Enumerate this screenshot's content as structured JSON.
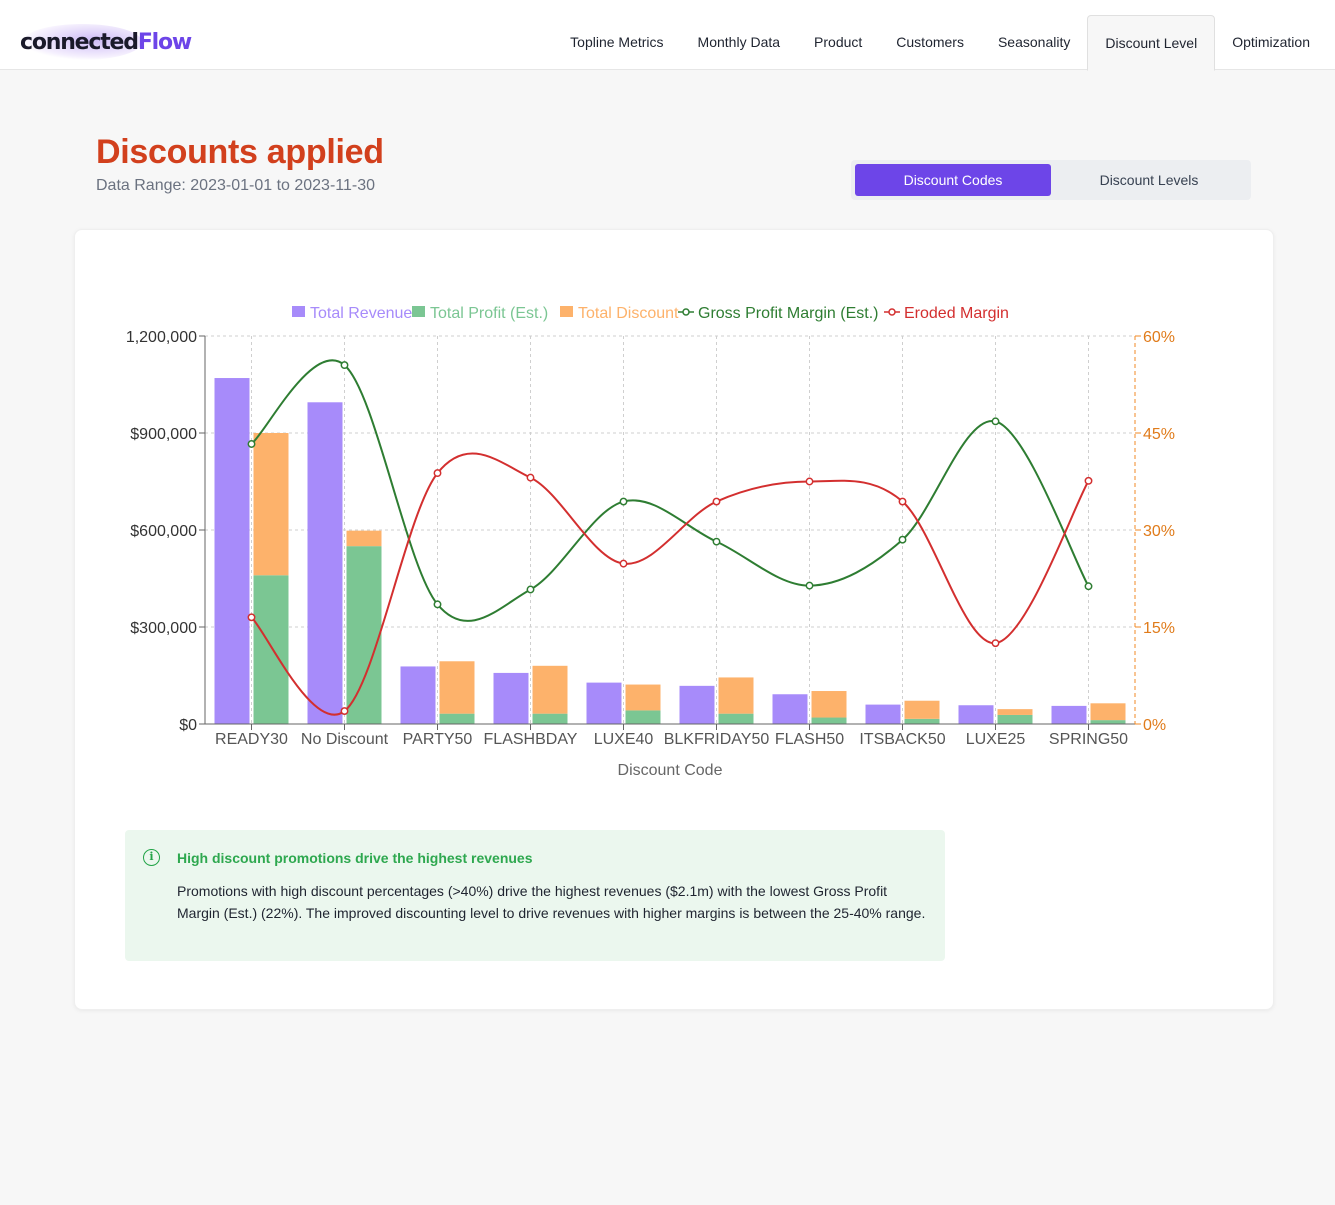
{
  "header": {
    "logo": {
      "part1": "connected",
      "part2": "Flow"
    },
    "nav": [
      {
        "label": "Topline Metrics",
        "active": false
      },
      {
        "label": "Monthly Data",
        "active": false
      },
      {
        "label": "Product",
        "active": false
      },
      {
        "label": "Customers",
        "active": false
      },
      {
        "label": "Seasonality",
        "active": false
      },
      {
        "label": "Discount Level",
        "active": true
      },
      {
        "label": "Optimization",
        "active": false
      }
    ]
  },
  "page": {
    "title": "Discounts applied",
    "date_range": "Data Range: 2023-01-01 to 2023-11-30"
  },
  "toggle": {
    "options": [
      {
        "label": "Discount Codes",
        "active": true
      },
      {
        "label": "Discount Levels",
        "active": false
      }
    ]
  },
  "chart_data": {
    "type": "bar",
    "xlabel": "Discount Code",
    "categories": [
      "READY30",
      "No Discount",
      "PARTY50",
      "FLASHBDAY",
      "LUXE40",
      "BLKFRIDAY50",
      "FLASH50",
      "ITSBACK50",
      "LUXE25",
      "SPRING50"
    ],
    "left_axis": {
      "ticks": [
        "$0",
        "$300,000",
        "$600,000",
        "$900,000",
        "1,200,000"
      ],
      "range": [
        0,
        1200000
      ]
    },
    "right_axis": {
      "ticks": [
        "0%",
        "15%",
        "30%",
        "45%",
        "60%"
      ],
      "range": [
        0,
        60
      ]
    },
    "series": [
      {
        "name": "Total Revenue",
        "kind": "bar",
        "axis": "left",
        "color": "#a78bfa",
        "values": [
          1070000,
          995000,
          178000,
          158000,
          128000,
          118000,
          92000,
          60000,
          58000,
          56000
        ]
      },
      {
        "name": "Total Profit (Est.)",
        "kind": "bar-stack-base",
        "axis": "left",
        "color": "#7bc693",
        "values": [
          460000,
          550000,
          32000,
          32000,
          42000,
          32000,
          20000,
          16000,
          28000,
          12000
        ]
      },
      {
        "name": "Total Discount",
        "kind": "bar-stack-top",
        "axis": "left",
        "color": "#fdb26b",
        "values": [
          440000,
          48000,
          162000,
          148000,
          80000,
          112000,
          82000,
          56000,
          18000,
          52000
        ]
      },
      {
        "name": "Gross Profit Margin (Est.)",
        "kind": "line",
        "axis": "right",
        "color": "#2e7d32",
        "values": [
          43.3,
          55.5,
          18.5,
          20.8,
          34.4,
          28.2,
          21.4,
          28.5,
          46.8,
          21.3
        ]
      },
      {
        "name": "Eroded Margin",
        "kind": "line",
        "axis": "right",
        "color": "#d32f2f",
        "values": [
          16.5,
          2.0,
          38.8,
          38.1,
          24.8,
          34.4,
          37.5,
          34.4,
          12.5,
          37.6
        ]
      }
    ],
    "grid": true,
    "legend_position": "top-center"
  },
  "insight": {
    "icon": "info-icon",
    "title": "High discount promotions drive the highest revenues",
    "body": "Promotions with high discount percentages (>40%) drive the highest revenues ($2.1m) with the lowest Gross Profit Margin (Est.) (22%). The improved discounting level to drive revenues with higher margins is between the 25-40% range."
  }
}
